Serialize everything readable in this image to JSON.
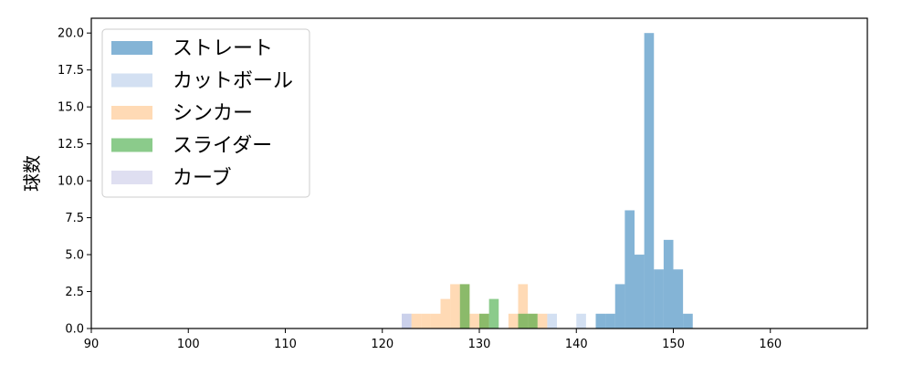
{
  "chart_data": {
    "type": "bar",
    "subtype": "histogram",
    "ylabel": "球数",
    "xlim": [
      90,
      170
    ],
    "ylim": [
      0,
      21
    ],
    "xticks": [
      90,
      100,
      110,
      120,
      130,
      140,
      150,
      160
    ],
    "yticks": [
      0,
      2.5,
      5,
      7.5,
      10,
      12.5,
      15,
      17.5,
      20
    ],
    "ytick_labels": [
      "0.0",
      "2.5",
      "5.0",
      "7.5",
      "10.0",
      "12.5",
      "15.0",
      "17.5",
      "20.0"
    ],
    "bin_width": 1,
    "grid": false,
    "legend_position": "top-left",
    "series": [
      {
        "name": "ストレート",
        "color": "#1f77b4",
        "bins": [
          {
            "x": 142,
            "count": 1
          },
          {
            "x": 143,
            "count": 1
          },
          {
            "x": 144,
            "count": 3
          },
          {
            "x": 145,
            "count": 8
          },
          {
            "x": 146,
            "count": 5
          },
          {
            "x": 147,
            "count": 20
          },
          {
            "x": 148,
            "count": 4
          },
          {
            "x": 149,
            "count": 6
          },
          {
            "x": 150,
            "count": 4
          },
          {
            "x": 151,
            "count": 1
          }
        ]
      },
      {
        "name": "カットボール",
        "color": "#aec7e8",
        "bins": [
          {
            "x": 122,
            "count": 1
          },
          {
            "x": 137,
            "count": 1
          },
          {
            "x": 140,
            "count": 1
          }
        ]
      },
      {
        "name": "シンカー",
        "color": "#ffbb78",
        "bins": [
          {
            "x": 123,
            "count": 1
          },
          {
            "x": 124,
            "count": 1
          },
          {
            "x": 125,
            "count": 1
          },
          {
            "x": 126,
            "count": 2
          },
          {
            "x": 127,
            "count": 3
          },
          {
            "x": 128,
            "count": 3
          },
          {
            "x": 129,
            "count": 1
          },
          {
            "x": 130,
            "count": 1
          },
          {
            "x": 133,
            "count": 1
          },
          {
            "x": 134,
            "count": 3
          },
          {
            "x": 135,
            "count": 1
          },
          {
            "x": 136,
            "count": 1
          }
        ]
      },
      {
        "name": "スライダー",
        "color": "#2ca02c",
        "bins": [
          {
            "x": 128,
            "count": 3
          },
          {
            "x": 130,
            "count": 1
          },
          {
            "x": 131,
            "count": 2
          },
          {
            "x": 134,
            "count": 1
          },
          {
            "x": 135,
            "count": 1
          }
        ]
      },
      {
        "name": "カーブ",
        "color": "#c5c5e6",
        "bins": [
          {
            "x": 122,
            "count": 1
          }
        ]
      }
    ]
  }
}
